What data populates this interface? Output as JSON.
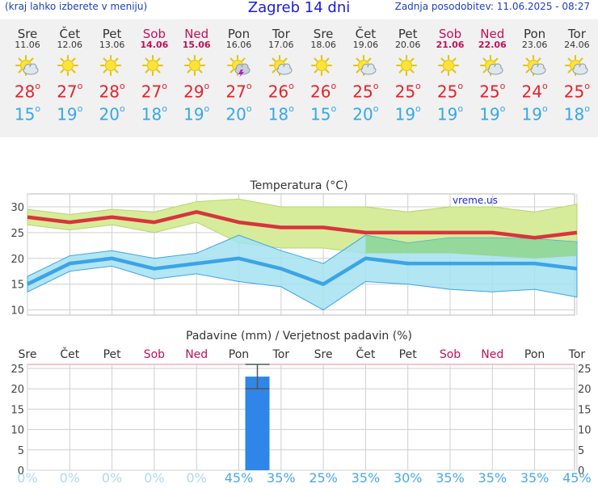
{
  "header": {
    "note": "(kraj lahko izberete v meniju)",
    "title": "Zagreb 14 dni",
    "updated": "Zadnja posodobitev: 11.06.2025 - 08:27"
  },
  "days": [
    {
      "name": "Sre",
      "date": "11.06",
      "weekend": false,
      "icon": "sun-cloud-icon",
      "max": "28",
      "min": "15"
    },
    {
      "name": "Čet",
      "date": "12.06",
      "weekend": false,
      "icon": "sun-icon",
      "max": "27",
      "min": "19"
    },
    {
      "name": "Pet",
      "date": "13.06",
      "weekend": false,
      "icon": "sun-icon",
      "max": "28",
      "min": "20"
    },
    {
      "name": "Sob",
      "date": "14.06",
      "weekend": true,
      "icon": "sun-icon",
      "max": "27",
      "min": "18"
    },
    {
      "name": "Ned",
      "date": "15.06",
      "weekend": true,
      "icon": "sun-icon",
      "max": "29",
      "min": "19"
    },
    {
      "name": "Pon",
      "date": "16.06",
      "weekend": false,
      "icon": "storm-icon",
      "max": "27",
      "min": "20"
    },
    {
      "name": "Tor",
      "date": "17.06",
      "weekend": false,
      "icon": "sun-cloud-icon",
      "max": "26",
      "min": "18"
    },
    {
      "name": "Sre",
      "date": "18.06",
      "weekend": false,
      "icon": "sun-icon",
      "max": "26",
      "min": "15"
    },
    {
      "name": "Čet",
      "date": "19.06",
      "weekend": false,
      "icon": "sun-cloud-icon",
      "max": "25",
      "min": "20"
    },
    {
      "name": "Pet",
      "date": "20.06",
      "weekend": false,
      "icon": "sun-icon",
      "max": "25",
      "min": "19"
    },
    {
      "name": "Sob",
      "date": "21.06",
      "weekend": true,
      "icon": "sun-icon",
      "max": "25",
      "min": "19"
    },
    {
      "name": "Ned",
      "date": "22.06",
      "weekend": true,
      "icon": "sun-cloud-icon",
      "max": "25",
      "min": "19"
    },
    {
      "name": "Pon",
      "date": "23.06",
      "weekend": false,
      "icon": "sun-cloud-icon",
      "max": "24",
      "min": "19"
    },
    {
      "name": "Tor",
      "date": "24.06",
      "weekend": false,
      "icon": "sun-cloud-icon",
      "max": "25",
      "min": "18"
    }
  ],
  "degree_symbol": "o",
  "colors": {
    "max_line": "#d8343c",
    "min_line": "#3ca4e6",
    "max_band": "#d6ec9a",
    "min_band": "#a4e2f0",
    "overlap_band": "#8fd68e",
    "precip_bar": "#2f86e8",
    "weekend_text": "#c0105a",
    "probability_text": "#4aa8e8"
  },
  "chart_data": [
    {
      "type": "line",
      "title": "Temperatura (°C)",
      "watermark": "vreme.us",
      "x": [
        "11.06",
        "12.06",
        "13.06",
        "14.06",
        "15.06",
        "16.06",
        "17.06",
        "18.06",
        "19.06",
        "20.06",
        "21.06",
        "22.06",
        "23.06",
        "24.06"
      ],
      "yticks": [
        10,
        15,
        20,
        25,
        30
      ],
      "ylim": [
        9,
        32.5
      ],
      "grid": true,
      "series": [
        {
          "name": "max",
          "values": [
            28,
            27,
            28,
            27,
            29,
            27,
            26,
            26,
            25,
            25,
            25,
            25,
            24,
            25
          ]
        },
        {
          "name": "min",
          "values": [
            15,
            19,
            20,
            18,
            19,
            20,
            18,
            15,
            20,
            19,
            19,
            19,
            19,
            18
          ]
        }
      ],
      "bands": [
        {
          "name": "max_range",
          "upper": [
            29.5,
            28.5,
            29.5,
            29,
            31,
            31.5,
            30,
            30,
            30,
            29,
            30,
            30,
            29,
            30.5
          ],
          "lower": [
            26.5,
            25.5,
            26.5,
            25,
            27,
            23,
            22,
            22,
            21,
            21,
            21,
            20.5,
            20,
            20.5
          ]
        },
        {
          "name": "min_range",
          "upper": [
            16.5,
            20.5,
            21.5,
            20,
            21,
            24.5,
            21.5,
            19,
            24.5,
            23,
            24,
            24,
            23.8,
            23.2
          ],
          "lower": [
            13.5,
            17.5,
            18.5,
            16,
            17,
            15.5,
            14.5,
            10,
            15.5,
            15,
            14,
            13.5,
            14,
            12.5
          ]
        }
      ]
    },
    {
      "type": "bar",
      "title": "Padavine (mm) / Verjetnost padavin (%)",
      "categories": [
        "Sre",
        "Čet",
        "Pet",
        "Sob",
        "Ned",
        "Pon",
        "Tor",
        "Sre",
        "Čet",
        "Pet",
        "Sob",
        "Ned",
        "Pon",
        "Tor"
      ],
      "values": [
        0,
        0,
        0,
        0,
        0,
        23,
        0,
        0,
        0,
        0,
        0,
        0,
        0,
        0
      ],
      "error_range": [
        [
          0,
          0
        ],
        [
          0,
          0
        ],
        [
          0,
          0
        ],
        [
          0,
          0
        ],
        [
          0,
          0
        ],
        [
          20,
          26
        ],
        [
          0,
          0
        ],
        [
          0,
          0
        ],
        [
          0,
          0
        ],
        [
          0,
          0
        ],
        [
          0,
          0
        ],
        [
          0,
          0
        ],
        [
          0,
          0
        ],
        [
          0,
          0
        ]
      ],
      "probability": [
        "0%",
        "0%",
        "0%",
        "0%",
        "0%",
        "45%",
        "35%",
        "25%",
        "35%",
        "30%",
        "35%",
        "35%",
        "35%",
        "45%"
      ],
      "yticks": [
        0,
        5,
        10,
        15,
        20,
        25
      ],
      "ylim": [
        0,
        26
      ],
      "grid": true
    }
  ]
}
